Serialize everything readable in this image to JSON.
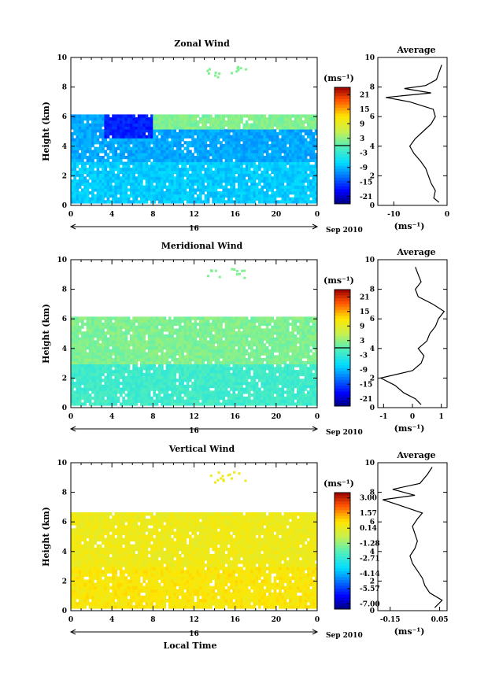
{
  "chart_data": [
    {
      "type": "heatmap",
      "title": "Zonal Wind",
      "ylabel": "Height (km)",
      "xlabel": "",
      "x_ticks": [
        "0",
        "4",
        "8",
        "12",
        "16",
        "20",
        "0"
      ],
      "y_ticks": [
        "0",
        "2",
        "4",
        "6",
        "8",
        "10"
      ],
      "xlim": [
        0,
        24
      ],
      "ylim": [
        0,
        10
      ],
      "date_day": "16",
      "date_label": "Sep 2010",
      "colorbar": {
        "unit": "(ms⁻¹)",
        "ticks": [
          "21",
          "15",
          "9",
          "3",
          "-3",
          "-9",
          "-15",
          "-21"
        ],
        "range": [
          -24,
          24
        ]
      },
      "field": {
        "data_top_km": 6.0,
        "low_band_ms": -8,
        "mid_band_ms": -10,
        "upper_jet_ms": -17,
        "top_layer_ms": 2,
        "top_layer_range_km": [
          5.0,
          6.5
        ],
        "top_layer_x_range_h": [
          8,
          24
        ]
      },
      "average": {
        "title": "Average",
        "xlabel": "(ms⁻¹)",
        "x_ticks": [
          "-10",
          "0"
        ],
        "xlim": [
          -13,
          0
        ],
        "ylim": [
          0,
          10
        ],
        "y_ticks": [
          "0",
          "2",
          "4",
          "6",
          "8",
          "10"
        ],
        "profile": [
          [
            0.2,
            -1.5
          ],
          [
            0.5,
            -2.5
          ],
          [
            1.0,
            -2.2
          ],
          [
            1.5,
            -3.0
          ],
          [
            2.0,
            -3.5
          ],
          [
            2.5,
            -4.0
          ],
          [
            3.0,
            -5.0
          ],
          [
            3.5,
            -6.2
          ],
          [
            4.0,
            -7.0
          ],
          [
            4.5,
            -6.0
          ],
          [
            5.0,
            -4.5
          ],
          [
            5.5,
            -3.0
          ],
          [
            6.0,
            -2.2
          ],
          [
            6.5,
            -2.6
          ],
          [
            7.0,
            -7.0
          ],
          [
            7.3,
            -11.5
          ],
          [
            7.6,
            -3.0
          ],
          [
            7.9,
            -8.0
          ],
          [
            8.1,
            -4.0
          ],
          [
            8.5,
            -2.0
          ],
          [
            9.0,
            -1.5
          ],
          [
            9.5,
            -1.0
          ]
        ]
      }
    },
    {
      "type": "heatmap",
      "title": "Meridional Wind",
      "ylabel": "Height (km)",
      "xlabel": "",
      "x_ticks": [
        "0",
        "4",
        "8",
        "12",
        "16",
        "20",
        "0"
      ],
      "y_ticks": [
        "0",
        "2",
        "4",
        "6",
        "8",
        "10"
      ],
      "xlim": [
        0,
        24
      ],
      "ylim": [
        0,
        10
      ],
      "date_day": "16",
      "date_label": "Sep 2010",
      "colorbar": {
        "unit": "(ms⁻¹)",
        "ticks": [
          "21",
          "15",
          "9",
          "3",
          "-3",
          "-9",
          "-15",
          "-21"
        ],
        "range": [
          -24,
          24
        ]
      },
      "field": {
        "data_top_km": 6.0,
        "low_band_ms": -2,
        "mid_band_ms": 2,
        "upper_jet_ms": 1,
        "top_layer_ms": 2,
        "top_layer_range_km": [
          4.0,
          6.0
        ],
        "top_layer_x_range_h": [
          0,
          24
        ]
      },
      "average": {
        "title": "Average",
        "xlabel": "(ms⁻¹)",
        "x_ticks": [
          "-1",
          "0",
          "1"
        ],
        "xlim": [
          -1.2,
          1.2
        ],
        "ylim": [
          0,
          10
        ],
        "y_ticks": [
          "0",
          "2",
          "4",
          "6",
          "8",
          "10"
        ],
        "profile": [
          [
            0.2,
            0.3
          ],
          [
            0.6,
            0.1
          ],
          [
            1.0,
            -0.3
          ],
          [
            1.5,
            -0.6
          ],
          [
            2.0,
            -1.1
          ],
          [
            2.5,
            0.0
          ],
          [
            3.0,
            0.3
          ],
          [
            3.5,
            0.4
          ],
          [
            4.0,
            0.2
          ],
          [
            4.5,
            0.5
          ],
          [
            5.0,
            0.6
          ],
          [
            5.5,
            0.8
          ],
          [
            6.0,
            0.9
          ],
          [
            6.5,
            1.1
          ],
          [
            7.0,
            0.7
          ],
          [
            7.5,
            0.2
          ],
          [
            8.0,
            0.1
          ],
          [
            8.5,
            0.3
          ],
          [
            9.0,
            0.2
          ],
          [
            9.5,
            0.1
          ]
        ]
      }
    },
    {
      "type": "heatmap",
      "title": "Vertical Wind",
      "ylabel": "Height (km)",
      "xlabel": "Local Time",
      "x_ticks": [
        "0",
        "4",
        "8",
        "12",
        "16",
        "20",
        "0"
      ],
      "y_ticks": [
        "0",
        "2",
        "4",
        "6",
        "8",
        "10"
      ],
      "xlim": [
        0,
        24
      ],
      "ylim": [
        0,
        10
      ],
      "date_day": "16",
      "date_label": "Sep 2010",
      "colorbar": {
        "unit": "(ms⁻¹)",
        "ticks": [
          "3.00",
          "1.57",
          "0.14",
          "-1.28",
          "-2.71",
          "-4.14",
          "-5.57",
          "-7.00"
        ],
        "range": [
          -7.5,
          3.5
        ]
      },
      "field": {
        "data_top_km": 6.5,
        "low_band_ms": 0.6,
        "mid_band_ms": 0.3,
        "upper_jet_ms": 0.3,
        "top_layer_ms": 0.3,
        "top_layer_range_km": [
          4.0,
          6.5
        ],
        "top_layer_x_range_h": [
          0,
          24
        ]
      },
      "average": {
        "title": "Average",
        "xlabel": "(ms⁻¹)",
        "x_ticks": [
          "-0.15",
          "0.05"
        ],
        "xlim": [
          -0.2,
          0.08
        ],
        "ylim": [
          0,
          10
        ],
        "y_ticks": [
          "0",
          "2",
          "4",
          "6",
          "8",
          "10"
        ],
        "profile": [
          [
            0.2,
            0.03
          ],
          [
            0.7,
            0.06
          ],
          [
            1.2,
            0.01
          ],
          [
            1.7,
            -0.01
          ],
          [
            2.2,
            -0.02
          ],
          [
            2.7,
            -0.04
          ],
          [
            3.2,
            -0.06
          ],
          [
            3.7,
            -0.07
          ],
          [
            4.2,
            -0.05
          ],
          [
            4.7,
            -0.04
          ],
          [
            5.2,
            -0.05
          ],
          [
            5.7,
            -0.06
          ],
          [
            6.2,
            -0.04
          ],
          [
            6.6,
            -0.02
          ],
          [
            7.0,
            -0.09
          ],
          [
            7.5,
            -0.18
          ],
          [
            7.8,
            -0.05
          ],
          [
            8.2,
            -0.14
          ],
          [
            8.6,
            -0.03
          ],
          [
            9.2,
            0.0
          ],
          [
            9.7,
            0.02
          ]
        ]
      }
    }
  ]
}
